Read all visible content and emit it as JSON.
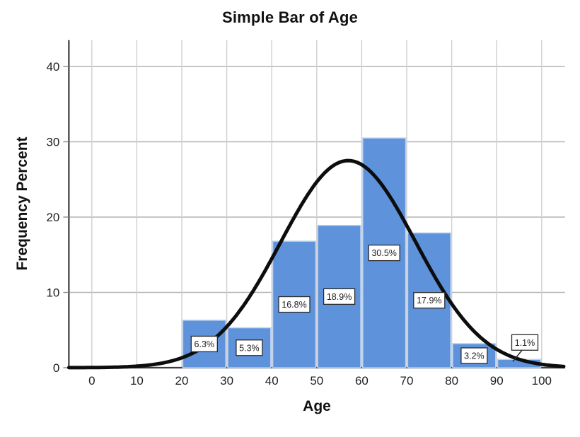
{
  "chart_data": {
    "type": "bar",
    "title": "Simple Bar of Age",
    "xlabel": "Age",
    "ylabel": "Frequency Percent",
    "bin_width": 10,
    "bin_starts": [
      20,
      30,
      40,
      50,
      60,
      70,
      80,
      90
    ],
    "values": [
      6.3,
      5.3,
      16.8,
      18.9,
      30.5,
      17.9,
      3.2,
      1.1
    ],
    "bar_labels": [
      "6.3%",
      "5.3%",
      "16.8%",
      "18.9%",
      "30.5%",
      "17.9%",
      "3.2%",
      "1.1%"
    ],
    "label_placement": [
      "center",
      "center",
      "center",
      "center",
      "center",
      "center",
      "center",
      "callout"
    ],
    "x_ticks": [
      0,
      10,
      20,
      30,
      40,
      50,
      60,
      70,
      80,
      90,
      100
    ],
    "y_ticks": [
      0,
      10,
      20,
      30,
      40
    ],
    "xlim": [
      -5.1,
      105.2
    ],
    "ylim": [
      0,
      43.5
    ],
    "grid": true,
    "legend": "none",
    "normal_curve": {
      "mean": 57,
      "sd": 15,
      "peak_percent": 27.5
    },
    "colors": {
      "bar_fill": "#5E93DB",
      "bar_border": "#BCD2EF",
      "curve": "#0d0d0d",
      "gridline_h": "#b4b4b4",
      "gridline_v": "#cfcfcf",
      "axis": "#3d3d3d",
      "tick": "#8a8a8a",
      "text": "#1f1f1f",
      "label_box_bg": "#ffffff",
      "label_box_border": "#2a2a2a"
    }
  }
}
